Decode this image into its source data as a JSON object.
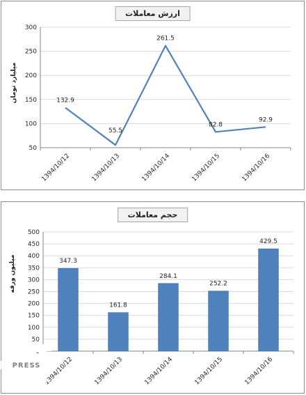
{
  "chart_data": [
    {
      "type": "line",
      "title": "ارزش معاملات",
      "ylabel": "میلیارد تومان",
      "xlabel": "",
      "categories": [
        "1394/10/12",
        "1394/10/13",
        "1394/10/14",
        "1394/10/15",
        "1394/10/16"
      ],
      "values": [
        132.9,
        55.5,
        261.5,
        82.8,
        92.9
      ],
      "data_labels": [
        "132.9",
        "55.5",
        "261.5",
        "82.8",
        "92.9"
      ],
      "yticks": [
        "50",
        "100",
        "150",
        "200",
        "250",
        "300"
      ],
      "ylim": [
        50,
        300
      ],
      "grid": true,
      "legend": "none",
      "color": "#4f81bd"
    },
    {
      "type": "bar",
      "title": "حجم معاملات",
      "ylabel": "میلیون ورقه",
      "xlabel": "",
      "categories": [
        "1394/10/12",
        "1394/10/13",
        "1394/10/14",
        "1394/10/15",
        "1394/10/16"
      ],
      "values": [
        347.3,
        161.8,
        284.1,
        252.2,
        429.5
      ],
      "data_labels": [
        "347.3",
        "161.8",
        "284.1",
        "252.2",
        "429.5"
      ],
      "yticks": [
        "0",
        "50",
        "100",
        "150",
        "200",
        "250",
        "300",
        "350",
        "400",
        "450",
        "500"
      ],
      "ylim": [
        0,
        500
      ],
      "grid": true,
      "legend": "none",
      "color": "#4f81bd"
    }
  ],
  "watermark": {
    "text": "ICT PRESS",
    "color": "#ffffff"
  }
}
